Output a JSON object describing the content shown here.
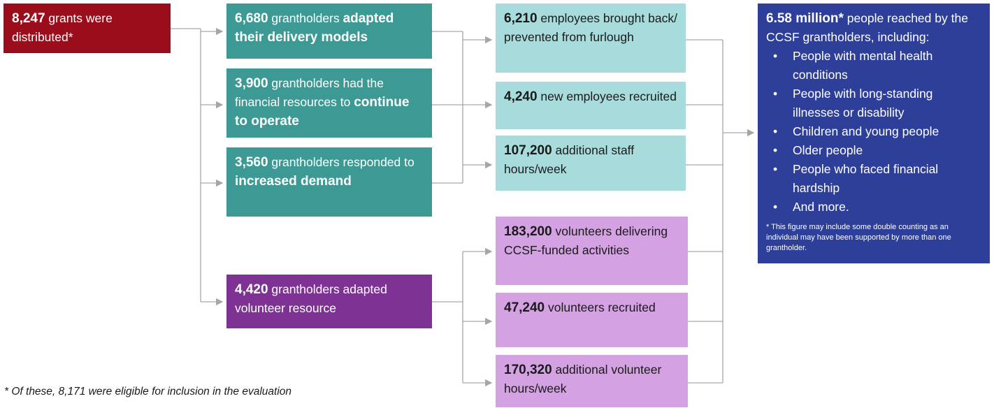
{
  "nodes": [
    {
      "segments": [
        {
          "text": "8,247",
          "bold": true
        },
        {
          "text": " grants were distributed*"
        }
      ]
    },
    {
      "segments": [
        {
          "text": "6,680",
          "bold": true
        },
        {
          "text": " grantholders "
        },
        {
          "text": "adapted their delivery models",
          "bold": true
        }
      ]
    },
    {
      "segments": [
        {
          "text": "3,900",
          "bold": true
        },
        {
          "text": " grantholders had the financial resources to "
        },
        {
          "text": "continue to operate",
          "bold": true
        }
      ]
    },
    {
      "segments": [
        {
          "text": "3,560",
          "bold": true
        },
        {
          "text": " grantholders responded to "
        },
        {
          "text": "increased demand",
          "bold": true
        }
      ]
    },
    {
      "segments": [
        {
          "text": "4,420",
          "bold": true
        },
        {
          "text": " grantholders adapted volunteer resource"
        }
      ]
    },
    {
      "segments": [
        {
          "text": "6,210",
          "bold": true
        },
        {
          "text": " employees brought back/ prevented from furlough"
        }
      ]
    },
    {
      "segments": [
        {
          "text": "4,240",
          "bold": true
        },
        {
          "text": " new employees recruited"
        }
      ]
    },
    {
      "segments": [
        {
          "text": "107,200",
          "bold": true
        },
        {
          "text": " additional staff hours/week"
        }
      ]
    },
    {
      "segments": [
        {
          "text": "183,200",
          "bold": true
        },
        {
          "text": " volunteers delivering CCSF-funded activities"
        }
      ]
    },
    {
      "segments": [
        {
          "text": "47,240",
          "bold": true
        },
        {
          "text": " volunteers recruited"
        }
      ]
    },
    {
      "segments": [
        {
          "text": "170,320",
          "bold": true
        },
        {
          "text": " additional volunteer hours/week"
        }
      ]
    }
  ],
  "outcome": {
    "segments": [
      {
        "text": "6.58 million*",
        "bold": true
      },
      {
        "text": " people reached by the CCSF grantholders, including:"
      }
    ],
    "bullets": [
      "People with mental health conditions",
      "People with long-standing illnesses or disability",
      "Children and young people",
      "Older people",
      "People who faced financial hardship",
      "And more."
    ],
    "note": "* This figure may include some double counting as an individual may have been supported by more than one grantholder."
  },
  "footnote": "* Of these, 8,171 were eligible for inclusion in the evaluation"
}
